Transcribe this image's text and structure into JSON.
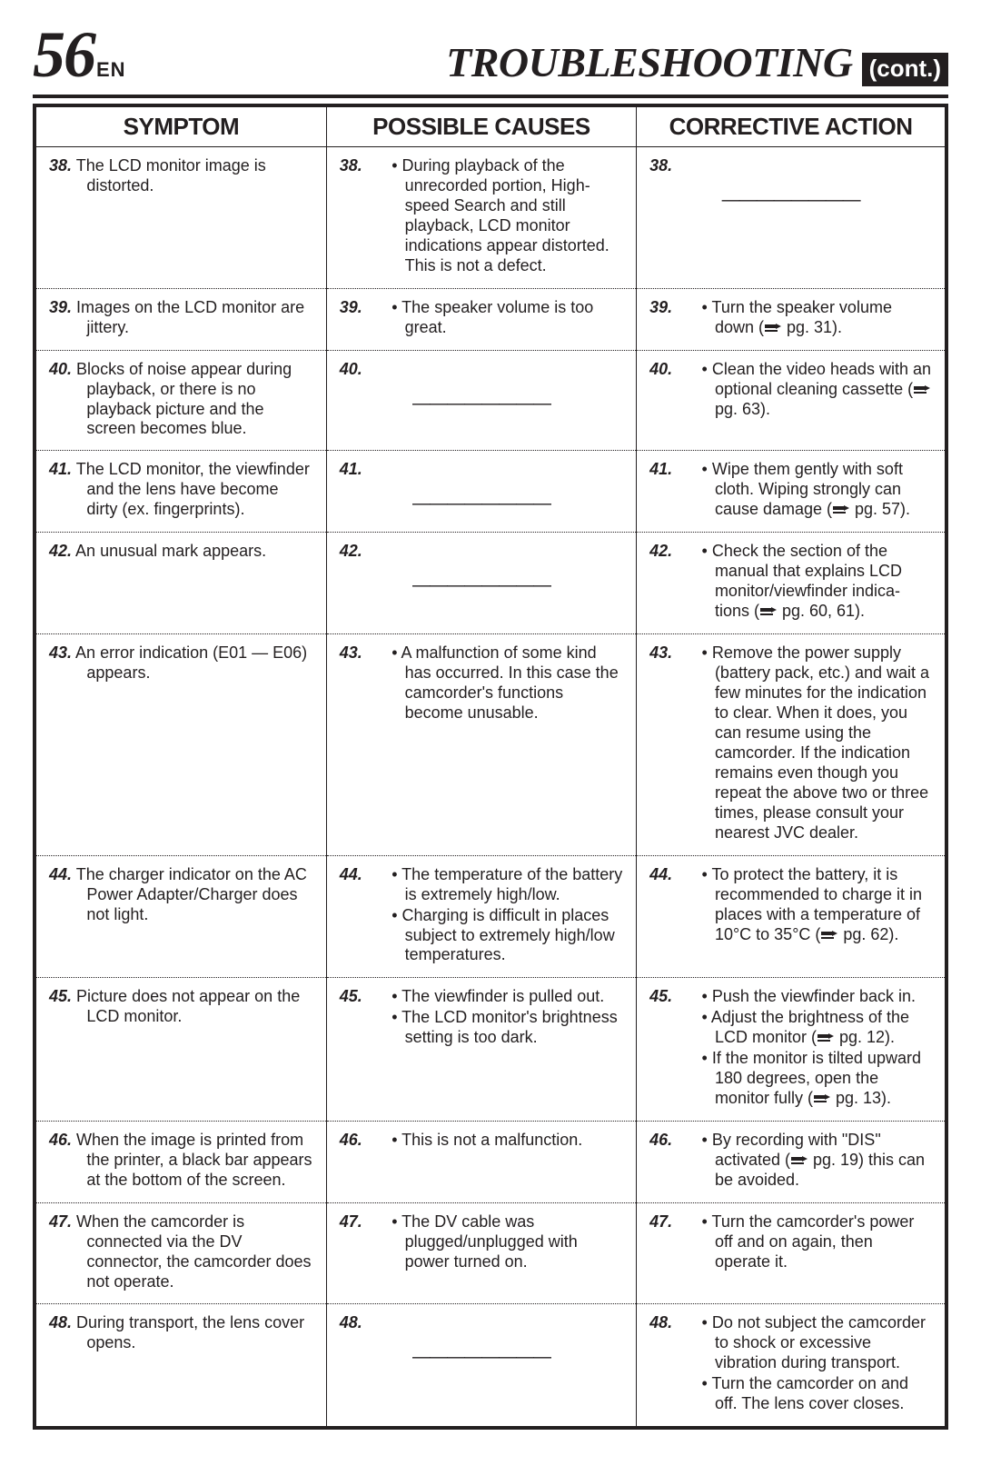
{
  "header": {
    "page_number": "56",
    "lang_code": "EN",
    "title": "TROUBLESHOOTING",
    "cont": "(cont.)"
  },
  "table": {
    "headers": {
      "symptom": "SYMPTOM",
      "causes": "POSSIBLE CAUSES",
      "action": "CORRECTIVE ACTION"
    },
    "rows": [
      {
        "n": "38.",
        "symptom": "The LCD monitor image is distorted.",
        "causes": [
          "During playback of the unrecorded portion, High-speed Search and still playback, LCD monitor indications appear distorted. This is not a defect."
        ],
        "action_blank": true,
        "action": []
      },
      {
        "n": "39.",
        "symptom": "Images on the LCD monitor are jittery.",
        "causes": [
          "The speaker volume is too great."
        ],
        "action": [
          {
            "pre": "Turn the speaker volume down (",
            "pg": "pg. 31).",
            "ref": true
          }
        ]
      },
      {
        "n": "40.",
        "symptom": "Blocks of noise appear during playback, or there is no playback picture and the screen becomes blue.",
        "causes_blank": true,
        "causes": [],
        "action": [
          {
            "pre": "Clean the video heads with an optional cleaning cassette (",
            "pg": "pg. 63).",
            "ref": true
          }
        ]
      },
      {
        "n": "41.",
        "symptom": "The LCD monitor, the viewfinder and the lens have become dirty (ex. fingerprints).",
        "causes_blank": true,
        "causes": [],
        "action": [
          {
            "pre": "Wipe them gently with soft cloth. Wiping strongly can cause damage (",
            "pg": "pg. 57).",
            "ref": true
          }
        ]
      },
      {
        "n": "42.",
        "symptom": "An unusual mark appears.",
        "causes_blank": true,
        "causes": [],
        "action": [
          {
            "pre": "Check the section of the manual that explains LCD monitor/viewfinder indica-tions (",
            "pg": "pg. 60, 61).",
            "ref": true
          }
        ]
      },
      {
        "n": "43.",
        "symptom": "An error indication (E01 — E06) appears.",
        "causes": [
          "A malfunction of some kind has occurred. In this case the camcorder's functions become unusable."
        ],
        "action": [
          {
            "pre": "Remove the power supply (battery pack, etc.) and wait a few minutes for the indication to clear. When it does, you can resume using the camcorder. If the indication remains even though you repeat the above two or three times, please consult your nearest JVC dealer."
          }
        ]
      },
      {
        "n": "44.",
        "symptom": "The charger indicator on the AC Power Adapter/Charger does not light.",
        "causes": [
          "The temperature of the battery is extremely high/low.",
          "Charging is difficult in places subject to extremely high/low temperatures."
        ],
        "action": [
          {
            "pre": "To protect the battery, it is recommended to charge it in places with a temperature of 10°C to 35°C (",
            "pg": "pg. 62).",
            "ref": true
          }
        ]
      },
      {
        "n": "45.",
        "symptom": "Picture does not appear on the LCD monitor.",
        "causes": [
          "The viewfinder is pulled out.",
          "The LCD monitor's brightness setting is too dark."
        ],
        "action": [
          {
            "pre": "Push the viewfinder back in."
          },
          {
            "pre": "Adjust the brightness of the LCD monitor (",
            "pg": "pg. 12).",
            "ref": true
          },
          {
            "pre": "If the monitor is tilted upward 180 degrees, open the monitor fully (",
            "pg": "pg. 13).",
            "ref": true
          }
        ]
      },
      {
        "n": "46.",
        "symptom": "When the image is printed from the printer, a black bar appears at the bottom of the screen.",
        "causes": [
          "This is not a malfunction."
        ],
        "action": [
          {
            "pre": "By recording with \"DIS\" activated (",
            "pg": "pg. 19) this can be avoided.",
            "ref": true
          }
        ]
      },
      {
        "n": "47.",
        "symptom": "When the camcorder is connected via the DV connector, the camcorder does not operate.",
        "causes": [
          "The DV cable was plugged/unplugged with power turned on."
        ],
        "action": [
          {
            "pre": "Turn the camcorder's power off and on again, then operate it."
          }
        ]
      },
      {
        "n": "48.",
        "symptom": "During transport, the lens cover opens.",
        "causes_blank": true,
        "causes": [],
        "action": [
          {
            "pre": "Do not subject the camcorder to shock or excessive vibration during transport."
          },
          {
            "pre": "Turn the camcorder on and off. The lens cover closes."
          }
        ]
      }
    ]
  },
  "style": {
    "page_bg": "#ffffff",
    "text_color": "#231f20",
    "border_color": "#231f20",
    "header_bg": "#231f20",
    "font_sizes": {
      "big_number": 72,
      "title": 46,
      "th": 26,
      "body": 18
    }
  }
}
